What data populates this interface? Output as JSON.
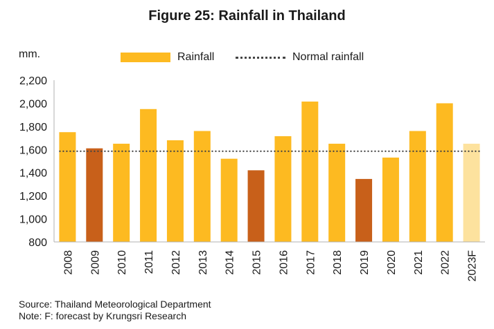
{
  "chart_data": {
    "type": "bar",
    "title": "Figure 25: Rainfall  in Thailand",
    "ylabel": "mm.",
    "ylim": [
      800,
      2200
    ],
    "yticks": [
      800,
      1000,
      1200,
      1400,
      1600,
      1800,
      2000,
      2200
    ],
    "ytick_labels": [
      "800",
      "1,000",
      "1,200",
      "1,400",
      "1,600",
      "1,800",
      "2,000",
      "2,200"
    ],
    "categories": [
      "2008",
      "2009",
      "2010",
      "2011",
      "2012",
      "2013",
      "2014",
      "2015",
      "2016",
      "2017",
      "2018",
      "2019",
      "2020",
      "2021",
      "2022",
      "2023F"
    ],
    "series": [
      {
        "name": "Rainfall",
        "values": [
          1750,
          1610,
          1650,
          1950,
          1680,
          1760,
          1520,
          1420,
          1715,
          2015,
          1650,
          1345,
          1530,
          1760,
          2000,
          1650
        ]
      }
    ],
    "normal_rainfall": {
      "name": "Normal rainfall",
      "value": 1585
    },
    "bar_colors": [
      "#FDBA21",
      "#C8601A",
      "#FDBA21",
      "#FDBA21",
      "#FDBA21",
      "#FDBA21",
      "#FDBA21",
      "#C8601A",
      "#FDBA21",
      "#FDBA21",
      "#FDBA21",
      "#C8601A",
      "#FDBA21",
      "#FDBA21",
      "#FDBA21",
      "#FDE29E"
    ],
    "legend_position": "top-center",
    "grid": false
  },
  "colors": {
    "rainfall": "#FDBA21",
    "below_normal": "#C8601A",
    "forecast": "#FDE29E",
    "normal_line": "#444444"
  },
  "notes": {
    "source": "Source: Thailand Meteorological Department",
    "note": "Note: F: forecast by Krungsri Research"
  }
}
